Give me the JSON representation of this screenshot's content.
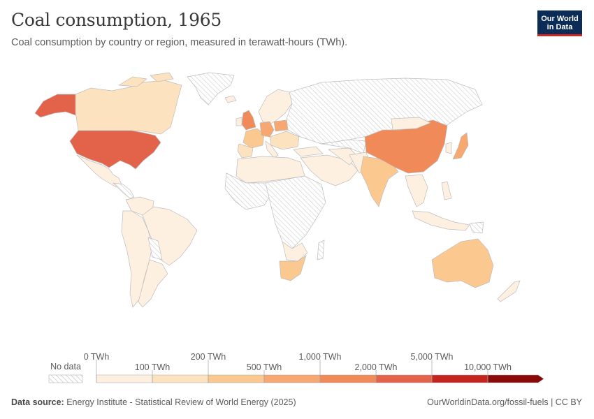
{
  "header": {
    "title": "Coal consumption, 1965",
    "subtitle": "Coal consumption by country or region, measured in terawatt-hours (TWh).",
    "logo_line1": "Our World",
    "logo_line2": "in Data"
  },
  "legend": {
    "no_data_label": "No data",
    "tick_labels_top": [
      "0 TWh",
      "200 TWh",
      "1,000 TWh",
      "5,000 TWh"
    ],
    "tick_labels_bottom": [
      "100 TWh",
      "500 TWh",
      "2,000 TWh",
      "10,000 TWh"
    ],
    "bins": [
      {
        "min": 0,
        "max": 100,
        "color": "#fef0e1"
      },
      {
        "min": 100,
        "max": 200,
        "color": "#fde2bf"
      },
      {
        "min": 200,
        "max": 500,
        "color": "#fbc88f"
      },
      {
        "min": 500,
        "max": 1000,
        "color": "#f7a770"
      },
      {
        "min": 1000,
        "max": 2000,
        "color": "#f08a58"
      },
      {
        "min": 2000,
        "max": 5000,
        "color": "#e2624a"
      },
      {
        "min": 5000,
        "max": 10000,
        "color": "#c4261e"
      },
      {
        "min": 10000,
        "max": null,
        "color": "#8a0a0a"
      }
    ]
  },
  "chart_data": {
    "type": "choropleth",
    "year": 1965,
    "unit": "TWh",
    "regions": [
      {
        "name": "United States",
        "bin": "2,000–5,000 TWh"
      },
      {
        "name": "Alaska",
        "bin": "2,000–5,000 TWh"
      },
      {
        "name": "China",
        "bin": "1,000–2,000 TWh"
      },
      {
        "name": "United Kingdom",
        "bin": "1,000–2,000 TWh"
      },
      {
        "name": "Germany",
        "bin": "500–1,000 TWh"
      },
      {
        "name": "Poland",
        "bin": "500–1,000 TWh"
      },
      {
        "name": "Japan",
        "bin": "500–1,000 TWh"
      },
      {
        "name": "Canada",
        "bin": "100–200 TWh"
      },
      {
        "name": "India",
        "bin": "200–500 TWh"
      },
      {
        "name": "Australia",
        "bin": "200–500 TWh"
      },
      {
        "name": "South Africa",
        "bin": "200–500 TWh"
      },
      {
        "name": "France",
        "bin": "200–500 TWh"
      },
      {
        "name": "Spain",
        "bin": "100–200 TWh"
      },
      {
        "name": "Mexico",
        "bin": "0–100 TWh"
      },
      {
        "name": "Brazil",
        "bin": "0–100 TWh"
      },
      {
        "name": "Russia",
        "bin": "No data"
      },
      {
        "name": "Central Africa",
        "bin": "No data"
      }
    ]
  },
  "footer": {
    "source_label": "Data source:",
    "source_text": "Energy Institute - Statistical Review of World Energy (2025)",
    "url_text": "OurWorldinData.org/fossil-fuels | CC BY"
  }
}
